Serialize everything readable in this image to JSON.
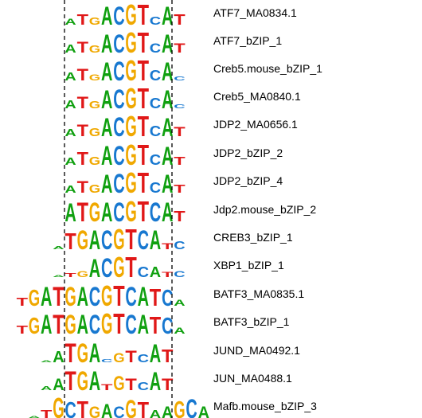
{
  "colors": {
    "A": "#10a010",
    "C": "#1878d0",
    "G": "#f0a800",
    "T": "#e01818"
  },
  "motifs": [
    {
      "name": "ATF7_MA0834.1",
      "logo": [
        [
          "A",
          0.3
        ],
        [
          "T",
          0.5
        ],
        [
          "G",
          0.35
        ],
        [
          "A",
          0.9
        ],
        [
          "C",
          0.9
        ],
        [
          "G",
          1.0
        ],
        [
          "T",
          1.0
        ],
        [
          "C",
          0.4
        ],
        [
          "A",
          0.9
        ],
        [
          "T",
          0.5
        ]
      ]
    },
    {
      "name": "ATF7_bZIP_1",
      "logo": [
        [
          "A",
          0.4
        ],
        [
          "T",
          0.55
        ],
        [
          "G",
          0.35
        ],
        [
          "A",
          0.9
        ],
        [
          "C",
          0.9
        ],
        [
          "G",
          1.0
        ],
        [
          "T",
          1.0
        ],
        [
          "C",
          0.45
        ],
        [
          "A",
          0.9
        ],
        [
          "T",
          0.45
        ]
      ]
    },
    {
      "name": "Creb5.mouse_bZIP_1",
      "logo": [
        [
          "A",
          0.4
        ],
        [
          "T",
          0.6
        ],
        [
          "G",
          0.3
        ],
        [
          "A",
          0.9
        ],
        [
          "C",
          0.95
        ],
        [
          "G",
          1.0
        ],
        [
          "T",
          1.0
        ],
        [
          "C",
          0.5
        ],
        [
          "A",
          0.9
        ],
        [
          "C",
          0.2
        ]
      ]
    },
    {
      "name": "Creb5_MA0840.1",
      "logo": [
        [
          "A",
          0.4
        ],
        [
          "T",
          0.6
        ],
        [
          "G",
          0.35
        ],
        [
          "A",
          0.9
        ],
        [
          "C",
          0.95
        ],
        [
          "G",
          1.0
        ],
        [
          "T",
          1.0
        ],
        [
          "C",
          0.5
        ],
        [
          "A",
          0.9
        ],
        [
          "C",
          0.2
        ]
      ]
    },
    {
      "name": "JDP2_MA0656.1",
      "logo": [
        [
          "A",
          0.35
        ],
        [
          "T",
          0.6
        ],
        [
          "G",
          0.4
        ],
        [
          "A",
          0.9
        ],
        [
          "C",
          0.95
        ],
        [
          "G",
          1.0
        ],
        [
          "T",
          1.0
        ],
        [
          "C",
          0.5
        ],
        [
          "A",
          0.9
        ],
        [
          "T",
          0.45
        ]
      ]
    },
    {
      "name": "JDP2_bZIP_2",
      "logo": [
        [
          "A",
          0.35
        ],
        [
          "T",
          0.65
        ],
        [
          "G",
          0.4
        ],
        [
          "A",
          0.95
        ],
        [
          "C",
          0.95
        ],
        [
          "G",
          1.0
        ],
        [
          "T",
          1.0
        ],
        [
          "C",
          0.5
        ],
        [
          "A",
          0.9
        ],
        [
          "T",
          0.4
        ]
      ]
    },
    {
      "name": "JDP2_bZIP_4",
      "logo": [
        [
          "A",
          0.35
        ],
        [
          "T",
          0.6
        ],
        [
          "G",
          0.4
        ],
        [
          "A",
          0.9
        ],
        [
          "C",
          0.95
        ],
        [
          "G",
          1.0
        ],
        [
          "T",
          1.0
        ],
        [
          "C",
          0.5
        ],
        [
          "A",
          0.9
        ],
        [
          "T",
          0.4
        ]
      ]
    },
    {
      "name": "Jdp2.mouse_bZIP_2",
      "logo": [
        [
          "A",
          0.9
        ],
        [
          "T",
          0.95
        ],
        [
          "G",
          0.95
        ],
        [
          "A",
          0.95
        ],
        [
          "C",
          0.95
        ],
        [
          "G",
          1.0
        ],
        [
          "T",
          1.0
        ],
        [
          "C",
          0.95
        ],
        [
          "A",
          0.95
        ],
        [
          "T",
          0.5
        ]
      ]
    },
    {
      "name": "CREB3_bZIP_1",
      "logo": [
        [
          "A",
          0.15
        ],
        [
          "T",
          0.8
        ],
        [
          "G",
          0.95
        ],
        [
          "A",
          0.95
        ],
        [
          "C",
          0.95
        ],
        [
          "G",
          1.0
        ],
        [
          "T",
          1.0
        ],
        [
          "C",
          0.95
        ],
        [
          "A",
          0.95
        ],
        [
          "T",
          0.3
        ],
        [
          "C",
          0.4
        ]
      ]
    },
    {
      "name": "XBP1_bZIP_1",
      "logo": [
        [
          "A",
          0.1
        ],
        [
          "T",
          0.2
        ],
        [
          "G",
          0.3
        ],
        [
          "A",
          0.9
        ],
        [
          "C",
          0.95
        ],
        [
          "G",
          1.0
        ],
        [
          "T",
          1.0
        ],
        [
          "C",
          0.5
        ],
        [
          "A",
          0.5
        ],
        [
          "T",
          0.25
        ],
        [
          "C",
          0.3
        ]
      ]
    },
    {
      "name": "BATF3_MA0835.1",
      "logo": [
        [
          "T",
          0.4
        ],
        [
          "G",
          0.8
        ],
        [
          "A",
          0.95
        ],
        [
          "T",
          0.95
        ],
        [
          "G",
          0.95
        ],
        [
          "A",
          0.95
        ],
        [
          "C",
          0.95
        ],
        [
          "G",
          1.0
        ],
        [
          "T",
          1.0
        ],
        [
          "C",
          0.95
        ],
        [
          "A",
          0.95
        ],
        [
          "T",
          0.85
        ],
        [
          "C",
          0.8
        ],
        [
          "A",
          0.3
        ]
      ]
    },
    {
      "name": "BATF3_bZIP_1",
      "logo": [
        [
          "T",
          0.4
        ],
        [
          "G",
          0.8
        ],
        [
          "A",
          0.95
        ],
        [
          "T",
          0.95
        ],
        [
          "G",
          0.95
        ],
        [
          "A",
          0.95
        ],
        [
          "C",
          0.95
        ],
        [
          "G",
          1.0
        ],
        [
          "T",
          1.0
        ],
        [
          "C",
          0.95
        ],
        [
          "A",
          0.95
        ],
        [
          "T",
          0.85
        ],
        [
          "C",
          0.8
        ],
        [
          "A",
          0.3
        ]
      ]
    },
    {
      "name": "JUND_MA0492.1",
      "logo": [
        [
          "A",
          0.1
        ],
        [
          "A",
          0.55
        ],
        [
          "T",
          0.95
        ],
        [
          "G",
          0.95
        ],
        [
          "A",
          0.95
        ],
        [
          "C",
          0.15
        ],
        [
          "G",
          0.45
        ],
        [
          "T",
          0.6
        ],
        [
          "C",
          0.4
        ],
        [
          "A",
          0.9
        ],
        [
          "T",
          0.65
        ]
      ]
    },
    {
      "name": "JUN_MA0488.1",
      "logo": [
        [
          "A",
          0.2
        ],
        [
          "A",
          0.6
        ],
        [
          "T",
          0.95
        ],
        [
          "G",
          0.95
        ],
        [
          "A",
          0.95
        ],
        [
          "T",
          0.3
        ],
        [
          "G",
          0.7
        ],
        [
          "T",
          0.6
        ],
        [
          "C",
          0.4
        ],
        [
          "A",
          0.9
        ],
        [
          "T",
          0.6
        ]
      ]
    },
    {
      "name": "Mafb.mouse_bZIP_3",
      "logo": [
        [
          "A",
          0.1
        ],
        [
          "T",
          0.4
        ],
        [
          "G",
          1.0
        ],
        [
          "C",
          0.8
        ],
        [
          "T",
          0.85
        ],
        [
          "G",
          0.6
        ],
        [
          "A",
          0.7
        ],
        [
          "C",
          0.6
        ],
        [
          "G",
          0.9
        ],
        [
          "T",
          0.8
        ],
        [
          "A",
          0.4
        ],
        [
          "A",
          0.6
        ],
        [
          "G",
          0.85
        ],
        [
          "C",
          0.95
        ],
        [
          "A",
          0.6
        ]
      ]
    }
  ]
}
